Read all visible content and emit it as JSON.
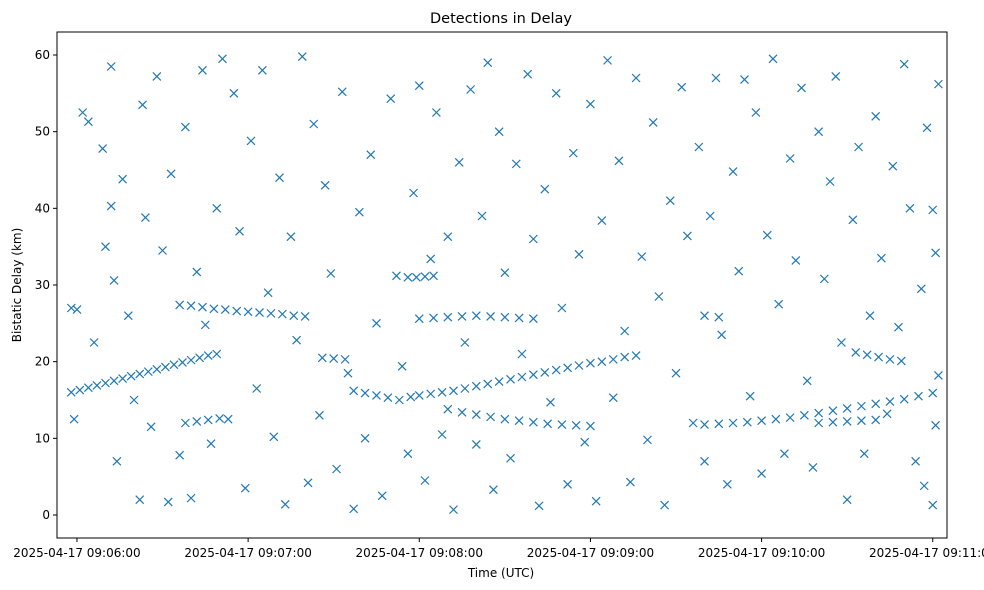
{
  "chart_data": {
    "type": "scatter",
    "title": "Detections in Delay",
    "xlabel": "Time (UTC)",
    "ylabel": "Bistatic Delay (km)",
    "x_unit": "time",
    "x_start": "2025-04-17 09:05:56",
    "x_end": "2025-04-17 09:11:02",
    "xlim": [
      "2025-04-17 09:05:53",
      "2025-04-17 09:11:05"
    ],
    "ylim": [
      -3.0,
      63.0
    ],
    "x_ticks": [
      "2025-04-17 09:06:00",
      "2025-04-17 09:07:00",
      "2025-04-17 09:08:00",
      "2025-04-17 09:09:00",
      "2025-04-17 09:10:00",
      "2025-04-17 09:11:00"
    ],
    "y_ticks": [
      0,
      10,
      20,
      30,
      40,
      50,
      60
    ],
    "marker": "x",
    "color": "#1f77b4",
    "grid": false,
    "legend": "none",
    "series": [
      {
        "description_points": "tracks and clutter sampled; values listed in t (HH:MM:SS), y (km) pairs",
        "points": [
          [
            "09:05:58",
            16.0
          ],
          [
            "09:06:01",
            16.3
          ],
          [
            "09:06:04",
            16.6
          ],
          [
            "09:06:07",
            16.9
          ],
          [
            "09:06:10",
            17.2
          ],
          [
            "09:06:13",
            17.5
          ],
          [
            "09:06:16",
            17.8
          ],
          [
            "09:06:19",
            18.1
          ],
          [
            "09:06:22",
            18.4
          ],
          [
            "09:06:25",
            18.7
          ],
          [
            "09:06:28",
            19.0
          ],
          [
            "09:06:31",
            19.3
          ],
          [
            "09:06:34",
            19.6
          ],
          [
            "09:06:37",
            19.9
          ],
          [
            "09:06:40",
            20.2
          ],
          [
            "09:06:43",
            20.5
          ],
          [
            "09:06:46",
            20.8
          ],
          [
            "09:06:49",
            21.0
          ],
          [
            "09:06:36",
            27.4
          ],
          [
            "09:06:40",
            27.3
          ],
          [
            "09:06:44",
            27.1
          ],
          [
            "09:06:48",
            26.9
          ],
          [
            "09:06:52",
            26.8
          ],
          [
            "09:06:56",
            26.6
          ],
          [
            "09:07:00",
            26.5
          ],
          [
            "09:07:04",
            26.4
          ],
          [
            "09:07:08",
            26.3
          ],
          [
            "09:07:12",
            26.2
          ],
          [
            "09:07:16",
            26.0
          ],
          [
            "09:07:20",
            25.9
          ],
          [
            "09:06:38",
            12.0
          ],
          [
            "09:06:42",
            12.2
          ],
          [
            "09:06:46",
            12.4
          ],
          [
            "09:06:50",
            12.6
          ],
          [
            "09:07:26",
            20.5
          ],
          [
            "09:07:30",
            20.4
          ],
          [
            "09:07:34",
            20.3
          ],
          [
            "09:07:37",
            16.2
          ],
          [
            "09:07:41",
            15.9
          ],
          [
            "09:07:45",
            15.6
          ],
          [
            "09:07:49",
            15.3
          ],
          [
            "09:07:53",
            15.0
          ],
          [
            "09:07:57",
            15.4
          ],
          [
            "09:08:00",
            15.6
          ],
          [
            "09:08:04",
            15.8
          ],
          [
            "09:08:08",
            16.0
          ],
          [
            "09:08:12",
            16.2
          ],
          [
            "09:08:16",
            16.5
          ],
          [
            "09:08:20",
            16.8
          ],
          [
            "09:08:24",
            17.1
          ],
          [
            "09:08:28",
            17.4
          ],
          [
            "09:08:32",
            17.7
          ],
          [
            "09:08:36",
            18.0
          ],
          [
            "09:08:40",
            18.3
          ],
          [
            "09:08:44",
            18.6
          ],
          [
            "09:08:48",
            18.9
          ],
          [
            "09:08:52",
            19.2
          ],
          [
            "09:08:56",
            19.5
          ],
          [
            "09:09:00",
            19.8
          ],
          [
            "09:09:04",
            20.0
          ],
          [
            "09:09:08",
            20.3
          ],
          [
            "09:09:12",
            20.6
          ],
          [
            "09:09:16",
            20.8
          ],
          [
            "09:07:56",
            31.0
          ],
          [
            "09:07:59",
            31.0
          ],
          [
            "09:08:02",
            31.1
          ],
          [
            "09:08:05",
            31.2
          ],
          [
            "09:08:00",
            25.6
          ],
          [
            "09:08:05",
            25.7
          ],
          [
            "09:08:10",
            25.8
          ],
          [
            "09:08:15",
            25.9
          ],
          [
            "09:08:20",
            26.0
          ],
          [
            "09:08:25",
            25.9
          ],
          [
            "09:08:30",
            25.8
          ],
          [
            "09:08:35",
            25.7
          ],
          [
            "09:08:40",
            25.6
          ],
          [
            "09:08:10",
            13.8
          ],
          [
            "09:08:15",
            13.4
          ],
          [
            "09:08:20",
            13.1
          ],
          [
            "09:08:25",
            12.8
          ],
          [
            "09:08:30",
            12.5
          ],
          [
            "09:08:35",
            12.3
          ],
          [
            "09:08:40",
            12.1
          ],
          [
            "09:08:45",
            11.9
          ],
          [
            "09:08:50",
            11.8
          ],
          [
            "09:08:55",
            11.7
          ],
          [
            "09:09:00",
            11.6
          ],
          [
            "09:09:40",
            11.8
          ],
          [
            "09:09:45",
            11.9
          ],
          [
            "09:09:50",
            12.0
          ],
          [
            "09:09:55",
            12.1
          ],
          [
            "09:10:00",
            12.3
          ],
          [
            "09:10:05",
            12.5
          ],
          [
            "09:10:10",
            12.7
          ],
          [
            "09:10:15",
            13.0
          ],
          [
            "09:10:20",
            13.3
          ],
          [
            "09:10:25",
            13.6
          ],
          [
            "09:10:30",
            13.9
          ],
          [
            "09:10:35",
            14.2
          ],
          [
            "09:10:40",
            14.5
          ],
          [
            "09:10:45",
            14.8
          ],
          [
            "09:10:50",
            15.1
          ],
          [
            "09:10:55",
            15.5
          ],
          [
            "09:11:00",
            15.9
          ],
          [
            "09:10:20",
            12.0
          ],
          [
            "09:10:25",
            12.1
          ],
          [
            "09:10:30",
            12.2
          ],
          [
            "09:10:35",
            12.3
          ],
          [
            "09:10:40",
            12.4
          ],
          [
            "09:10:33",
            21.2
          ],
          [
            "09:10:37",
            20.9
          ],
          [
            "09:10:41",
            20.6
          ],
          [
            "09:10:45",
            20.3
          ],
          [
            "09:10:49",
            20.1
          ],
          [
            "09:09:40",
            26.0
          ],
          [
            "09:09:45",
            25.8
          ],
          [
            "09:05:58",
            27.0
          ],
          [
            "09:06:00",
            26.8
          ],
          [
            "09:05:59",
            12.5
          ],
          [
            "09:06:02",
            52.5
          ],
          [
            "09:06:04",
            51.3
          ],
          [
            "09:06:06",
            22.5
          ],
          [
            "09:06:09",
            47.8
          ],
          [
            "09:06:10",
            35.0
          ],
          [
            "09:06:12",
            58.5
          ],
          [
            "09:06:12",
            40.3
          ],
          [
            "09:06:13",
            30.6
          ],
          [
            "09:06:14",
            7.0
          ],
          [
            "09:06:16",
            43.8
          ],
          [
            "09:06:18",
            26.0
          ],
          [
            "09:06:20",
            15.0
          ],
          [
            "09:06:22",
            2.0
          ],
          [
            "09:06:23",
            53.5
          ],
          [
            "09:06:24",
            38.8
          ],
          [
            "09:06:26",
            11.5
          ],
          [
            "09:06:28",
            57.2
          ],
          [
            "09:06:30",
            34.5
          ],
          [
            "09:06:32",
            1.7
          ],
          [
            "09:06:33",
            44.5
          ],
          [
            "09:06:36",
            7.8
          ],
          [
            "09:06:38",
            50.6
          ],
          [
            "09:06:40",
            2.2
          ],
          [
            "09:06:42",
            31.7
          ],
          [
            "09:06:44",
            58.0
          ],
          [
            "09:06:45",
            24.8
          ],
          [
            "09:06:47",
            9.3
          ],
          [
            "09:06:49",
            40.0
          ],
          [
            "09:06:51",
            59.5
          ],
          [
            "09:06:53",
            12.5
          ],
          [
            "09:06:55",
            55.0
          ],
          [
            "09:06:57",
            37.0
          ],
          [
            "09:06:59",
            3.5
          ],
          [
            "09:07:01",
            48.8
          ],
          [
            "09:07:03",
            16.5
          ],
          [
            "09:07:05",
            58.0
          ],
          [
            "09:07:07",
            29.0
          ],
          [
            "09:07:09",
            10.2
          ],
          [
            "09:07:11",
            44.0
          ],
          [
            "09:07:13",
            1.4
          ],
          [
            "09:07:15",
            36.3
          ],
          [
            "09:07:17",
            22.8
          ],
          [
            "09:07:19",
            59.8
          ],
          [
            "09:07:21",
            4.2
          ],
          [
            "09:07:23",
            51.0
          ],
          [
            "09:07:25",
            13.0
          ],
          [
            "09:07:27",
            43.0
          ],
          [
            "09:07:29",
            31.5
          ],
          [
            "09:07:31",
            6.0
          ],
          [
            "09:07:33",
            55.2
          ],
          [
            "09:07:35",
            18.5
          ],
          [
            "09:07:37",
            0.8
          ],
          [
            "09:07:39",
            39.5
          ],
          [
            "09:07:41",
            10.0
          ],
          [
            "09:07:43",
            47.0
          ],
          [
            "09:07:45",
            25.0
          ],
          [
            "09:07:47",
            2.5
          ],
          [
            "09:07:50",
            54.3
          ],
          [
            "09:07:52",
            31.2
          ],
          [
            "09:07:54",
            19.4
          ],
          [
            "09:07:56",
            8.0
          ],
          [
            "09:07:58",
            42.0
          ],
          [
            "09:08:00",
            56.0
          ],
          [
            "09:08:02",
            4.5
          ],
          [
            "09:08:04",
            33.4
          ],
          [
            "09:08:06",
            52.5
          ],
          [
            "09:08:08",
            10.5
          ],
          [
            "09:08:10",
            36.3
          ],
          [
            "09:08:12",
            0.7
          ],
          [
            "09:08:14",
            46.0
          ],
          [
            "09:08:16",
            22.5
          ],
          [
            "09:08:18",
            55.5
          ],
          [
            "09:08:20",
            9.2
          ],
          [
            "09:08:22",
            39.0
          ],
          [
            "09:08:24",
            59.0
          ],
          [
            "09:08:26",
            3.3
          ],
          [
            "09:08:28",
            50.0
          ],
          [
            "09:08:30",
            31.6
          ],
          [
            "09:08:32",
            7.4
          ],
          [
            "09:08:34",
            45.8
          ],
          [
            "09:08:36",
            21.0
          ],
          [
            "09:08:38",
            57.5
          ],
          [
            "09:08:40",
            36.0
          ],
          [
            "09:08:42",
            1.2
          ],
          [
            "09:08:44",
            42.5
          ],
          [
            "09:08:46",
            14.7
          ],
          [
            "09:08:48",
            55.0
          ],
          [
            "09:08:50",
            27.0
          ],
          [
            "09:08:52",
            4.0
          ],
          [
            "09:08:54",
            47.2
          ],
          [
            "09:08:56",
            34.0
          ],
          [
            "09:08:58",
            9.5
          ],
          [
            "09:09:00",
            53.6
          ],
          [
            "09:09:02",
            1.8
          ],
          [
            "09:09:04",
            38.4
          ],
          [
            "09:09:06",
            59.3
          ],
          [
            "09:09:08",
            15.3
          ],
          [
            "09:09:10",
            46.2
          ],
          [
            "09:09:12",
            24.0
          ],
          [
            "09:09:14",
            4.3
          ],
          [
            "09:09:16",
            57.0
          ],
          [
            "09:09:18",
            33.7
          ],
          [
            "09:09:20",
            9.8
          ],
          [
            "09:09:22",
            51.2
          ],
          [
            "09:09:24",
            28.5
          ],
          [
            "09:09:26",
            1.3
          ],
          [
            "09:09:28",
            41.0
          ],
          [
            "09:09:30",
            18.5
          ],
          [
            "09:09:32",
            55.8
          ],
          [
            "09:09:34",
            36.4
          ],
          [
            "09:09:36",
            12.0
          ],
          [
            "09:09:38",
            48.0
          ],
          [
            "09:09:40",
            7.0
          ],
          [
            "09:09:42",
            39.0
          ],
          [
            "09:09:44",
            57.0
          ],
          [
            "09:09:46",
            23.5
          ],
          [
            "09:09:48",
            4.0
          ],
          [
            "09:09:50",
            44.8
          ],
          [
            "09:09:52",
            31.8
          ],
          [
            "09:09:54",
            56.8
          ],
          [
            "09:09:56",
            15.5
          ],
          [
            "09:09:58",
            52.5
          ],
          [
            "09:10:00",
            5.4
          ],
          [
            "09:10:02",
            36.5
          ],
          [
            "09:10:04",
            59.5
          ],
          [
            "09:10:06",
            27.5
          ],
          [
            "09:10:08",
            8.0
          ],
          [
            "09:10:10",
            46.5
          ],
          [
            "09:10:12",
            33.2
          ],
          [
            "09:10:14",
            55.7
          ],
          [
            "09:10:16",
            17.5
          ],
          [
            "09:10:18",
            6.2
          ],
          [
            "09:10:20",
            50.0
          ],
          [
            "09:10:22",
            30.8
          ],
          [
            "09:10:24",
            43.5
          ],
          [
            "09:10:26",
            57.2
          ],
          [
            "09:10:28",
            22.5
          ],
          [
            "09:10:30",
            2.0
          ],
          [
            "09:10:32",
            38.5
          ],
          [
            "09:10:34",
            48.0
          ],
          [
            "09:10:36",
            8.0
          ],
          [
            "09:10:38",
            26.0
          ],
          [
            "09:10:40",
            52.0
          ],
          [
            "09:10:42",
            33.5
          ],
          [
            "09:10:44",
            13.2
          ],
          [
            "09:10:46",
            45.5
          ],
          [
            "09:10:48",
            24.5
          ],
          [
            "09:10:50",
            58.8
          ],
          [
            "09:10:52",
            40.0
          ],
          [
            "09:10:54",
            7.0
          ],
          [
            "09:10:56",
            29.5
          ],
          [
            "09:10:58",
            50.5
          ],
          [
            "09:11:00",
            1.3
          ],
          [
            "09:11:01",
            34.2
          ],
          [
            "09:11:02",
            56.2
          ],
          [
            "09:11:02",
            18.2
          ],
          [
            "09:11:01",
            11.7
          ],
          [
            "09:11:00",
            39.8
          ],
          [
            "09:10:57",
            3.8
          ]
        ]
      }
    ]
  }
}
